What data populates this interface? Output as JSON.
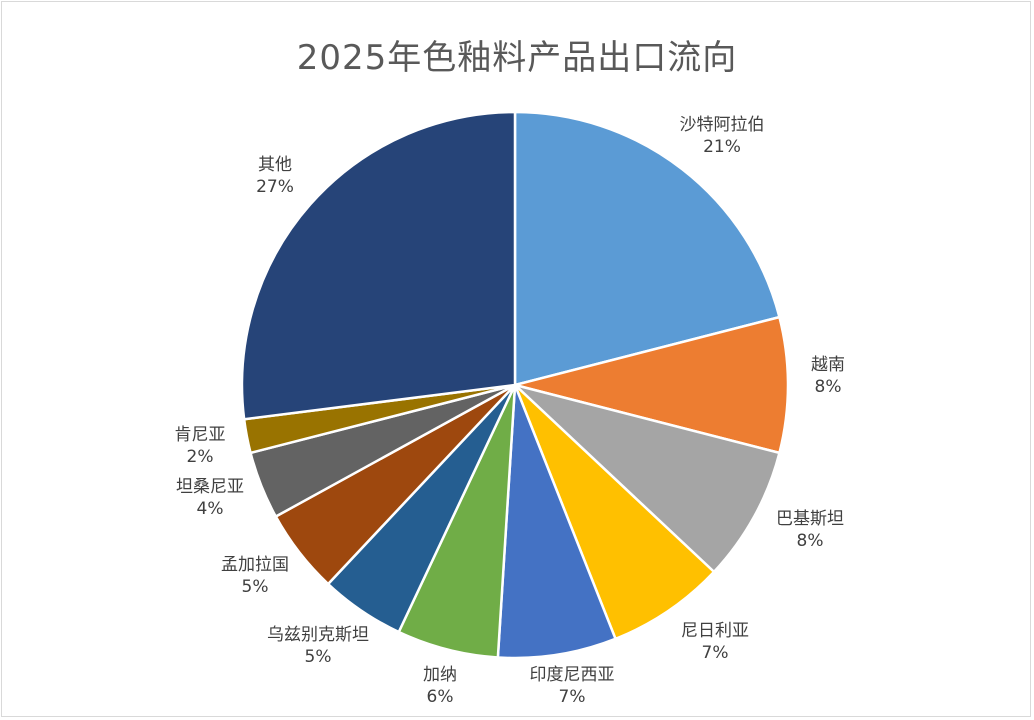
{
  "chart_data": {
    "type": "pie",
    "title": "2025年色釉料产品出口流向",
    "start_angle_deg": 0,
    "direction": "clockwise",
    "slices": [
      {
        "label": "沙特阿拉伯",
        "value": 21,
        "pct_label": "21%",
        "color": "#5B9BD5"
      },
      {
        "label": "越南",
        "value": 8,
        "pct_label": "8%",
        "color": "#ED7D31"
      },
      {
        "label": "巴基斯坦",
        "value": 8,
        "pct_label": "8%",
        "color": "#A5A5A5"
      },
      {
        "label": "尼日利亚",
        "value": 7,
        "pct_label": "7%",
        "color": "#FFC000"
      },
      {
        "label": "印度尼西亚",
        "value": 7,
        "pct_label": "7%",
        "color": "#4472C4"
      },
      {
        "label": "加纳",
        "value": 6,
        "pct_label": "6%",
        "color": "#70AD47"
      },
      {
        "label": "乌兹别克斯坦",
        "value": 5,
        "pct_label": "5%",
        "color": "#255E91"
      },
      {
        "label": "孟加拉国",
        "value": 5,
        "pct_label": "5%",
        "color": "#9E480E"
      },
      {
        "label": "坦桑尼亚",
        "value": 4,
        "pct_label": "4%",
        "color": "#636363"
      },
      {
        "label": "肯尼亚",
        "value": 2,
        "pct_label": "2%",
        "color": "#997300"
      },
      {
        "label": "其他",
        "value": 27,
        "pct_label": "27%",
        "color": "#264478"
      }
    ]
  }
}
